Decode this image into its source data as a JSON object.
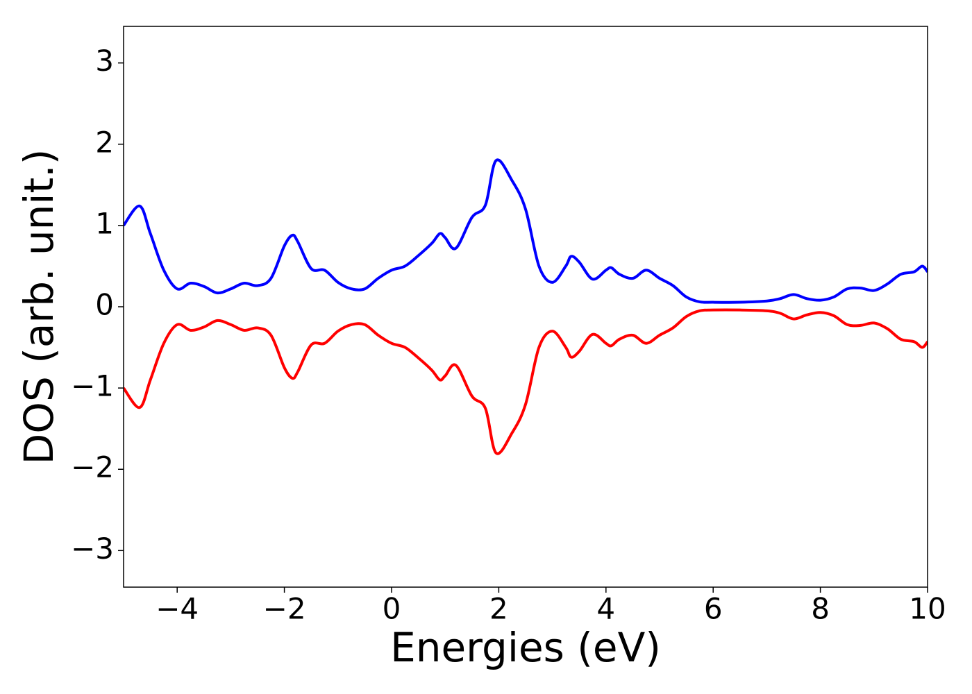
{
  "chart_data": {
    "type": "line",
    "xlabel": "Energies (eV)",
    "ylabel": "DOS (arb. unit.)",
    "x": [
      -5,
      -4.7,
      -4.5,
      -4.25,
      -4,
      -3.75,
      -3.5,
      -3.25,
      -3,
      -2.75,
      -2.5,
      -2.25,
      -2,
      -1.85,
      -1.75,
      -1.5,
      -1.25,
      -1,
      -0.75,
      -0.5,
      -0.25,
      0,
      0.25,
      0.5,
      0.75,
      0.9,
      1,
      1.2,
      1.5,
      1.75,
      1.95,
      2.25,
      2.5,
      2.75,
      3,
      3.25,
      3.35,
      3.5,
      3.75,
      4,
      4.1,
      4.25,
      4.5,
      4.75,
      5,
      5.25,
      5.5,
      5.75,
      6,
      6.5,
      7,
      7.25,
      7.5,
      7.75,
      8,
      8.25,
      8.5,
      8.75,
      9,
      9.25,
      9.5,
      9.75,
      9.9,
      10
    ],
    "series": [
      {
        "color": "#0000ff",
        "values": [
          1.0,
          1.24,
          0.9,
          0.45,
          0.22,
          0.29,
          0.25,
          0.17,
          0.22,
          0.29,
          0.26,
          0.35,
          0.75,
          0.88,
          0.8,
          0.47,
          0.45,
          0.3,
          0.22,
          0.22,
          0.35,
          0.45,
          0.5,
          0.63,
          0.78,
          0.9,
          0.85,
          0.72,
          1.1,
          1.25,
          1.8,
          1.55,
          1.2,
          0.5,
          0.3,
          0.5,
          0.62,
          0.55,
          0.34,
          0.45,
          0.48,
          0.4,
          0.35,
          0.45,
          0.35,
          0.26,
          0.12,
          0.06,
          0.055,
          0.055,
          0.07,
          0.1,
          0.15,
          0.1,
          0.08,
          0.12,
          0.22,
          0.23,
          0.2,
          0.28,
          0.4,
          0.43,
          0.5,
          0.43
        ]
      },
      {
        "color": "#ff0000",
        "values": [
          -1.0,
          -1.24,
          -0.9,
          -0.45,
          -0.22,
          -0.29,
          -0.25,
          -0.17,
          -0.22,
          -0.29,
          -0.26,
          -0.35,
          -0.75,
          -0.88,
          -0.8,
          -0.47,
          -0.45,
          -0.3,
          -0.22,
          -0.22,
          -0.35,
          -0.45,
          -0.5,
          -0.63,
          -0.78,
          -0.9,
          -0.85,
          -0.72,
          -1.1,
          -1.25,
          -1.8,
          -1.55,
          -1.2,
          -0.5,
          -0.3,
          -0.5,
          -0.62,
          -0.55,
          -0.34,
          -0.45,
          -0.48,
          -0.4,
          -0.35,
          -0.45,
          -0.35,
          -0.26,
          -0.12,
          -0.05,
          -0.04,
          -0.04,
          -0.05,
          -0.08,
          -0.15,
          -0.1,
          -0.07,
          -0.11,
          -0.22,
          -0.23,
          -0.2,
          -0.27,
          -0.4,
          -0.43,
          -0.5,
          -0.43
        ]
      }
    ],
    "xlim": [
      -5,
      10
    ],
    "xticks": [
      {
        "value": -4,
        "label": "−4"
      },
      {
        "value": -2,
        "label": "−2"
      },
      0,
      2,
      4,
      6,
      8,
      10
    ],
    "ylim": [
      -3.45,
      3.45
    ],
    "yticks": [
      {
        "value": -3,
        "label": "−3"
      },
      {
        "value": -2,
        "label": "−2"
      },
      {
        "value": -1,
        "label": "−1"
      },
      0,
      1,
      2,
      3
    ]
  }
}
